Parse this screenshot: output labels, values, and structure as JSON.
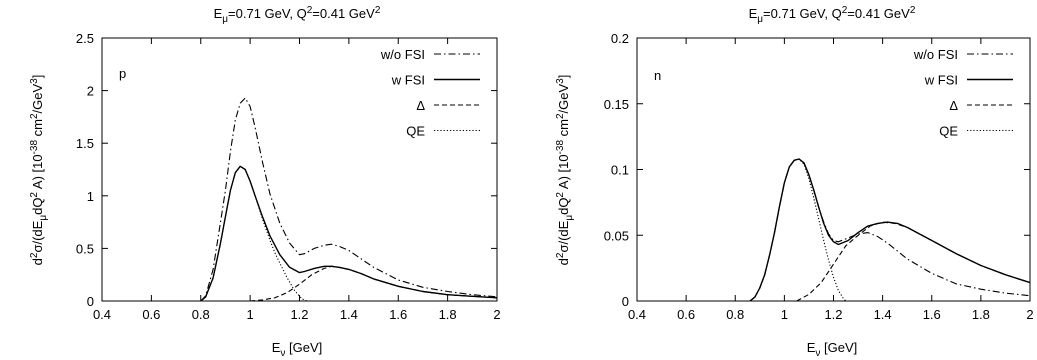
{
  "chart_data": [
    {
      "type": "line",
      "panel_label": "p",
      "title": {
        "main": "E",
        "sub": "μ",
        "mid": "=0.71 GeV, Q",
        "sup": "2",
        "tail": "=0.41 GeV",
        "sup2": "2"
      },
      "xlabel": {
        "main": "E",
        "sub": "ν",
        "tail": " [GeV]"
      },
      "ylabel": {
        "a": "d",
        "a_sup": "2",
        "b": "σ/(dE",
        "b_sub": "μ",
        "c": "dQ",
        "c_sup": "2",
        "d": " A) [10",
        "d_sup": "-38",
        "e": " cm",
        "e_sup": "2",
        "f": "/GeV",
        "f_sup": "3",
        "g": "]"
      },
      "xlim": [
        0.4,
        2.0
      ],
      "ylim": [
        0,
        2.5
      ],
      "xticks": [
        "0.4",
        "0.6",
        "0.8",
        "1",
        "1.2",
        "1.4",
        "1.6",
        "1.8",
        "2"
      ],
      "yticks": [
        "0",
        "0.5",
        "1",
        "1.5",
        "2",
        "2.5"
      ],
      "legend_position": "top-right",
      "series": [
        {
          "name": "w/o FSI",
          "style": "dashdot",
          "x": [
            0.8,
            0.82,
            0.85,
            0.88,
            0.9,
            0.92,
            0.94,
            0.96,
            0.98,
            1.0,
            1.02,
            1.05,
            1.08,
            1.12,
            1.16,
            1.2,
            1.22,
            1.26,
            1.3,
            1.33,
            1.36,
            1.4,
            1.45,
            1.5,
            1.6,
            1.7,
            1.8,
            1.9,
            2.0
          ],
          "y": [
            0.0,
            0.05,
            0.3,
            0.75,
            1.05,
            1.42,
            1.72,
            1.88,
            1.93,
            1.85,
            1.65,
            1.32,
            1.02,
            0.74,
            0.55,
            0.44,
            0.45,
            0.5,
            0.53,
            0.54,
            0.52,
            0.48,
            0.4,
            0.32,
            0.2,
            0.13,
            0.09,
            0.06,
            0.04
          ]
        },
        {
          "name": "w FSI",
          "style": "solid",
          "x": [
            0.8,
            0.82,
            0.85,
            0.88,
            0.9,
            0.92,
            0.94,
            0.96,
            0.98,
            1.0,
            1.02,
            1.05,
            1.08,
            1.12,
            1.16,
            1.2,
            1.22,
            1.26,
            1.3,
            1.33,
            1.36,
            1.4,
            1.45,
            1.5,
            1.6,
            1.7,
            1.8,
            1.9,
            2.0
          ],
          "y": [
            0.0,
            0.04,
            0.22,
            0.55,
            0.8,
            1.05,
            1.22,
            1.28,
            1.25,
            1.14,
            1.0,
            0.8,
            0.62,
            0.44,
            0.32,
            0.27,
            0.28,
            0.31,
            0.33,
            0.33,
            0.32,
            0.3,
            0.26,
            0.21,
            0.14,
            0.09,
            0.06,
            0.045,
            0.03
          ]
        },
        {
          "name": "Δ",
          "style": "dashed",
          "x": [
            1.0,
            1.05,
            1.1,
            1.15,
            1.2,
            1.25,
            1.3,
            1.33,
            1.36,
            1.4,
            1.45,
            1.5,
            1.6,
            1.7,
            1.8,
            1.9,
            2.0
          ],
          "y": [
            0.0,
            0.01,
            0.03,
            0.08,
            0.16,
            0.25,
            0.31,
            0.33,
            0.32,
            0.3,
            0.26,
            0.21,
            0.14,
            0.09,
            0.06,
            0.045,
            0.03
          ]
        },
        {
          "name": "QE",
          "style": "dotted",
          "x": [
            0.8,
            0.82,
            0.85,
            0.88,
            0.9,
            0.92,
            0.94,
            0.96,
            0.98,
            1.0,
            1.02,
            1.05,
            1.08,
            1.1,
            1.12,
            1.15,
            1.18,
            1.21,
            1.23
          ],
          "y": [
            0.0,
            0.04,
            0.22,
            0.55,
            0.8,
            1.05,
            1.22,
            1.28,
            1.25,
            1.14,
            1.0,
            0.78,
            0.58,
            0.46,
            0.36,
            0.22,
            0.1,
            0.02,
            0.0
          ]
        }
      ]
    },
    {
      "type": "line",
      "panel_label": "n",
      "title": {
        "main": "E",
        "sub": "μ",
        "mid": "=0.71 GeV, Q",
        "sup": "2",
        "tail": "=0.41 GeV",
        "sup2": "2"
      },
      "xlabel": {
        "main": "E",
        "sub": "ν",
        "tail": " [GeV]"
      },
      "ylabel": {
        "a": "d",
        "a_sup": "2",
        "b": "σ/(dE",
        "b_sub": "μ",
        "c": "dQ",
        "c_sup": "2",
        "d": " A) [10",
        "d_sup": "-38",
        "e": " cm",
        "e_sup": "2",
        "f": "/GeV",
        "f_sup": "3",
        "g": "]"
      },
      "xlim": [
        0.4,
        2.0
      ],
      "ylim": [
        0,
        0.2
      ],
      "xticks": [
        "0.4",
        "0.6",
        "0.8",
        "1",
        "1.2",
        "1.4",
        "1.6",
        "1.8",
        "2"
      ],
      "yticks": [
        "0",
        "0.05",
        "0.1",
        "0.15",
        "0.2"
      ],
      "legend_position": "top-right",
      "series": [
        {
          "name": "w/o FSI",
          "style": "dashdot",
          "x": [
            0.86,
            0.88,
            0.9,
            0.92,
            0.94,
            0.96,
            0.98,
            1.0,
            1.02,
            1.04,
            1.06,
            1.08,
            1.1,
            1.12,
            1.14,
            1.16,
            1.18,
            1.2,
            1.22,
            1.26,
            1.3,
            1.34,
            1.38,
            1.42,
            1.46,
            1.5,
            1.6,
            1.7,
            1.8,
            1.9,
            2.0
          ],
          "y": [
            0.0,
            0.003,
            0.01,
            0.02,
            0.035,
            0.052,
            0.072,
            0.09,
            0.102,
            0.107,
            0.108,
            0.105,
            0.096,
            0.084,
            0.071,
            0.06,
            0.051,
            0.046,
            0.045,
            0.048,
            0.051,
            0.052,
            0.049,
            0.044,
            0.038,
            0.032,
            0.021,
            0.013,
            0.009,
            0.006,
            0.004
          ]
        },
        {
          "name": "w FSI",
          "style": "solid",
          "x": [
            0.86,
            0.88,
            0.9,
            0.92,
            0.94,
            0.96,
            0.98,
            1.0,
            1.02,
            1.04,
            1.06,
            1.08,
            1.1,
            1.12,
            1.14,
            1.16,
            1.18,
            1.2,
            1.22,
            1.26,
            1.3,
            1.34,
            1.38,
            1.42,
            1.46,
            1.5,
            1.6,
            1.7,
            1.8,
            1.9,
            2.0
          ],
          "y": [
            0.0,
            0.003,
            0.01,
            0.02,
            0.035,
            0.052,
            0.072,
            0.09,
            0.102,
            0.107,
            0.108,
            0.105,
            0.096,
            0.084,
            0.071,
            0.059,
            0.05,
            0.045,
            0.043,
            0.046,
            0.052,
            0.057,
            0.059,
            0.06,
            0.059,
            0.056,
            0.046,
            0.036,
            0.027,
            0.02,
            0.014
          ]
        },
        {
          "name": "Δ",
          "style": "dashed",
          "x": [
            1.05,
            1.1,
            1.15,
            1.2,
            1.25,
            1.3,
            1.35,
            1.4,
            1.45,
            1.5,
            1.6,
            1.7,
            1.8,
            1.9,
            2.0
          ],
          "y": [
            0.0,
            0.005,
            0.014,
            0.028,
            0.042,
            0.05,
            0.057,
            0.06,
            0.059,
            0.056,
            0.046,
            0.036,
            0.027,
            0.02,
            0.014
          ]
        },
        {
          "name": "QE",
          "style": "dotted",
          "x": [
            0.86,
            0.88,
            0.9,
            0.92,
            0.94,
            0.96,
            0.98,
            1.0,
            1.02,
            1.04,
            1.06,
            1.08,
            1.1,
            1.12,
            1.14,
            1.16,
            1.18,
            1.2,
            1.22,
            1.24,
            1.25
          ],
          "y": [
            0.0,
            0.003,
            0.01,
            0.02,
            0.035,
            0.052,
            0.072,
            0.09,
            0.102,
            0.107,
            0.108,
            0.104,
            0.093,
            0.078,
            0.062,
            0.046,
            0.031,
            0.018,
            0.008,
            0.002,
            0.0
          ]
        }
      ]
    }
  ]
}
